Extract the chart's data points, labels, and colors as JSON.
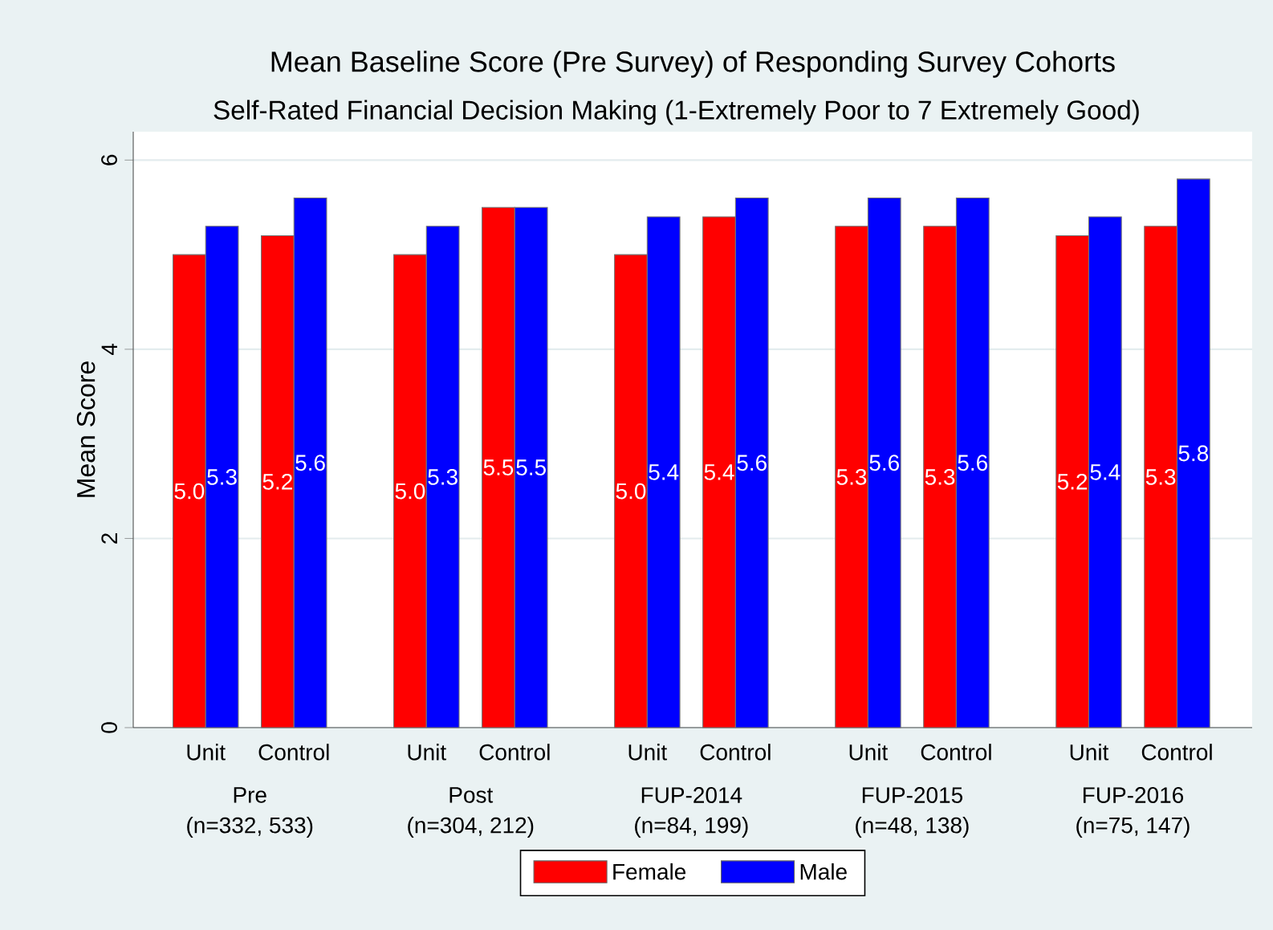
{
  "chart_data": {
    "type": "bar",
    "title": "Mean Baseline Score (Pre Survey) of Responding Survey Cohorts",
    "subtitle": "Self-Rated Financial Decision Making (1-Extremely Poor to 7 Extremely Good)",
    "ylabel": "Mean Score",
    "categories": [
      "Unit",
      "Control",
      "Unit",
      "Control",
      "Unit",
      "Control",
      "Unit",
      "Control",
      "Unit",
      "Control"
    ],
    "series": [
      {
        "name": "Female",
        "color": "#ff0000",
        "values": [
          5.0,
          5.2,
          5.0,
          5.5,
          5.0,
          5.4,
          5.3,
          5.3,
          5.2,
          5.3
        ],
        "value_labels": [
          "5.0",
          "5.2",
          "5.0",
          "5.5",
          "5.0",
          "5.4",
          "5.3",
          "5.3",
          "5.2",
          "5.3"
        ]
      },
      {
        "name": "Male",
        "color": "#0000ff",
        "values": [
          5.3,
          5.6,
          5.3,
          5.5,
          5.4,
          5.6,
          5.6,
          5.6,
          5.4,
          5.8
        ],
        "value_labels": [
          "5.3",
          "5.6",
          "5.3",
          "5.5",
          "5.4",
          "5.6",
          "5.6",
          "5.6",
          "5.4",
          "5.8"
        ]
      }
    ],
    "ylim": [
      0,
      6.3
    ],
    "yticks": [
      0,
      2,
      4,
      6
    ],
    "grid": "y",
    "legend": "bottom",
    "annotations": [
      "Pre",
      "(n=332, 533)",
      "Post",
      "(n=304, 212)",
      "FUP-2014",
      "(n=84, 199)",
      "FUP-2015",
      "(n=48, 138)",
      "FUP-2016",
      "(n=75, 147)"
    ]
  }
}
